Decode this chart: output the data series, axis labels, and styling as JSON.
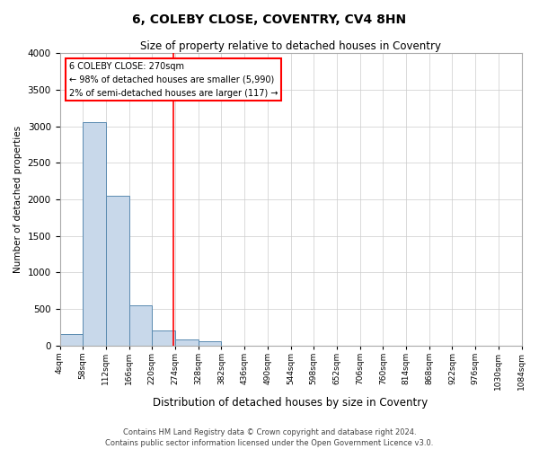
{
  "title": "6, COLEBY CLOSE, COVENTRY, CV4 8HN",
  "subtitle": "Size of property relative to detached houses in Coventry",
  "xlabel": "Distribution of detached houses by size in Coventry",
  "ylabel": "Number of detached properties",
  "annotation_line1": "6 COLEBY CLOSE: 270sqm",
  "annotation_line2": "← 98% of detached houses are smaller (5,990)",
  "annotation_line3": "2% of semi-detached houses are larger (117) →",
  "footnote1": "Contains HM Land Registry data © Crown copyright and database right 2024.",
  "footnote2": "Contains public sector information licensed under the Open Government Licence v3.0.",
  "bin_edges": [
    4,
    58,
    112,
    166,
    220,
    274,
    328,
    382,
    436,
    490,
    544,
    598,
    652,
    706,
    760,
    814,
    868,
    922,
    976,
    1030,
    1084
  ],
  "bin_labels": [
    "4sqm",
    "58sqm",
    "112sqm",
    "166sqm",
    "220sqm",
    "274sqm",
    "328sqm",
    "382sqm",
    "436sqm",
    "490sqm",
    "544sqm",
    "598sqm",
    "652sqm",
    "706sqm",
    "760sqm",
    "814sqm",
    "868sqm",
    "922sqm",
    "976sqm",
    "1030sqm",
    "1084sqm"
  ],
  "bar_heights": [
    150,
    3050,
    2050,
    550,
    210,
    80,
    55,
    0,
    0,
    0,
    0,
    0,
    0,
    0,
    0,
    0,
    0,
    0,
    0,
    0
  ],
  "bar_color": "#c8d8ea",
  "bar_edge_color": "#5a8ab0",
  "red_line_x": 270,
  "ylim_max": 4000,
  "yticks": [
    0,
    500,
    1000,
    1500,
    2000,
    2500,
    3000,
    3500,
    4000
  ],
  "background_color": "#ffffff",
  "grid_color": "#cccccc",
  "title_fontsize": 10,
  "subtitle_fontsize": 8.5,
  "ylabel_fontsize": 7.5,
  "xlabel_fontsize": 8.5,
  "ytick_fontsize": 7.5,
  "xtick_fontsize": 6.5,
  "annot_fontsize": 7,
  "footnote_fontsize": 6
}
